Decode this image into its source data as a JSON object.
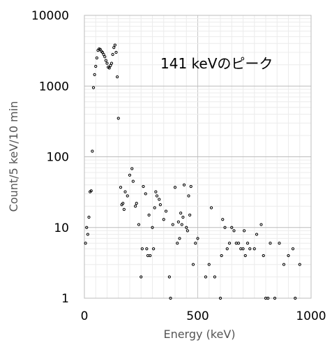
{
  "chart_data": {
    "type": "scatter",
    "title": "",
    "xlabel": "Energy (keV)",
    "ylabel": "Count/5 keV/10 min",
    "xlim": [
      0,
      1000
    ],
    "ylim": [
      1,
      10000
    ],
    "yscale": "log",
    "grid": true,
    "xticks": [
      0,
      500,
      1000
    ],
    "yticks": [
      1,
      10,
      100,
      1000,
      10000
    ],
    "xtick_labels": [
      "0",
      "500",
      "1000"
    ],
    "ytick_labels": [
      "1",
      "10",
      "100",
      "1000",
      "10000"
    ],
    "annotation": "141 keVのピーク",
    "series": [
      {
        "marker": "open-circle",
        "color": "#000000",
        "points": [
          [
            5,
            6
          ],
          [
            10,
            10
          ],
          [
            15,
            8
          ],
          [
            20,
            14
          ],
          [
            25,
            32
          ],
          [
            30,
            33
          ],
          [
            35,
            120
          ],
          [
            40,
            950
          ],
          [
            45,
            1450
          ],
          [
            50,
            1900
          ],
          [
            55,
            2500
          ],
          [
            60,
            3200
          ],
          [
            65,
            3350
          ],
          [
            70,
            3300
          ],
          [
            75,
            3100
          ],
          [
            80,
            3000
          ],
          [
            85,
            2800
          ],
          [
            90,
            2600
          ],
          [
            95,
            2300
          ],
          [
            100,
            2100
          ],
          [
            105,
            1850
          ],
          [
            110,
            1800
          ],
          [
            115,
            1950
          ],
          [
            120,
            2100
          ],
          [
            125,
            2800
          ],
          [
            130,
            3500
          ],
          [
            135,
            3800
          ],
          [
            140,
            3000
          ],
          [
            145,
            1350
          ],
          [
            150,
            350
          ],
          [
            160,
            37
          ],
          [
            165,
            21
          ],
          [
            170,
            22
          ],
          [
            175,
            18
          ],
          [
            180,
            32
          ],
          [
            190,
            28
          ],
          [
            200,
            55
          ],
          [
            210,
            68
          ],
          [
            215,
            45
          ],
          [
            225,
            20
          ],
          [
            230,
            22
          ],
          [
            240,
            11
          ],
          [
            250,
            2
          ],
          [
            255,
            5
          ],
          [
            260,
            38
          ],
          [
            270,
            30
          ],
          [
            275,
            5
          ],
          [
            280,
            4
          ],
          [
            285,
            15
          ],
          [
            290,
            4
          ],
          [
            300,
            10
          ],
          [
            305,
            5
          ],
          [
            310,
            19
          ],
          [
            315,
            32
          ],
          [
            320,
            28
          ],
          [
            330,
            25
          ],
          [
            335,
            21
          ],
          [
            350,
            13
          ],
          [
            360,
            17
          ],
          [
            375,
            2
          ],
          [
            380,
            1
          ],
          [
            390,
            11
          ],
          [
            400,
            37
          ],
          [
            410,
            6
          ],
          [
            415,
            12
          ],
          [
            420,
            7
          ],
          [
            425,
            16
          ],
          [
            430,
            11
          ],
          [
            435,
            14
          ],
          [
            440,
            40
          ],
          [
            450,
            10
          ],
          [
            455,
            9
          ],
          [
            460,
            28
          ],
          [
            465,
            15
          ],
          [
            470,
            38
          ],
          [
            480,
            3
          ],
          [
            490,
            6
          ],
          [
            500,
            7
          ],
          [
            535,
            2
          ],
          [
            550,
            3
          ],
          [
            560,
            19
          ],
          [
            575,
            2
          ],
          [
            600,
            1
          ],
          [
            605,
            4
          ],
          [
            610,
            13
          ],
          [
            620,
            10
          ],
          [
            630,
            5
          ],
          [
            640,
            6
          ],
          [
            650,
            10
          ],
          [
            660,
            9
          ],
          [
            670,
            6
          ],
          [
            680,
            6
          ],
          [
            690,
            5
          ],
          [
            700,
            5
          ],
          [
            705,
            9
          ],
          [
            710,
            4
          ],
          [
            720,
            6
          ],
          [
            730,
            5
          ],
          [
            750,
            5
          ],
          [
            760,
            8
          ],
          [
            780,
            11
          ],
          [
            790,
            4
          ],
          [
            800,
            1
          ],
          [
            810,
            1
          ],
          [
            820,
            6
          ],
          [
            840,
            1
          ],
          [
            860,
            6
          ],
          [
            880,
            3
          ],
          [
            900,
            4
          ],
          [
            920,
            5
          ],
          [
            930,
            1
          ],
          [
            950,
            3
          ]
        ]
      }
    ]
  }
}
